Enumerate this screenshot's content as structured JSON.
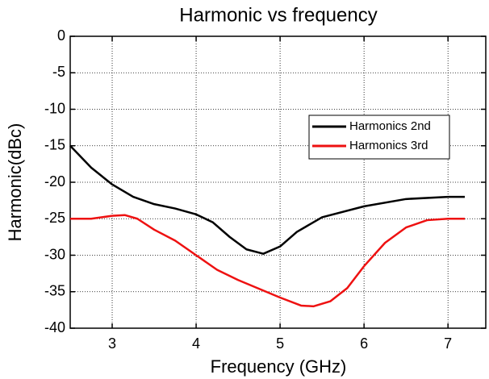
{
  "chart_data": {
    "type": "line",
    "title": "Harmonic vs frequency",
    "x_label": "Frequency  (GHz)",
    "y_label": "Harmonic(dBc)",
    "xlim": [
      2.5,
      7.45
    ],
    "ylim": [
      -40,
      0
    ],
    "xticks": [
      3,
      4,
      5,
      6,
      7
    ],
    "yticks": [
      0,
      -5,
      -10,
      -15,
      -20,
      -25,
      -30,
      -35,
      -40
    ],
    "grid": true,
    "legend": "upper right",
    "x": [
      2.5,
      2.75,
      3,
      3.25,
      3.5,
      3.75,
      4,
      4.2,
      4.4,
      4.6,
      4.8,
      5,
      5.2,
      5.5,
      6,
      6.5,
      7,
      7.2
    ],
    "series": [
      {
        "name": "Harmonics 2nd",
        "color": "#000000",
        "values": [
          -15,
          -18,
          -20.3,
          -22,
          -23,
          -23.6,
          -24.4,
          -25.5,
          -27.5,
          -29.2,
          -29.8,
          -28.8,
          -26.8,
          -24.8,
          -23.3,
          -22.3,
          -22,
          -22
        ]
      },
      {
        "name": "Harmonics 3rd",
        "color": "#ee1111",
        "x": [
          2.5,
          2.75,
          3,
          3.15,
          3.3,
          3.5,
          3.75,
          4,
          4.25,
          4.5,
          4.75,
          5,
          5.25,
          5.4,
          5.6,
          5.8,
          6,
          6.25,
          6.5,
          6.75,
          7,
          7.2
        ],
        "values": [
          -25,
          -25,
          -24.6,
          -24.5,
          -25,
          -26.5,
          -28,
          -30,
          -32,
          -33.4,
          -34.6,
          -35.8,
          -36.9,
          -37,
          -36.3,
          -34.5,
          -31.5,
          -28.3,
          -26.2,
          -25.2,
          -25,
          -25
        ]
      }
    ]
  }
}
